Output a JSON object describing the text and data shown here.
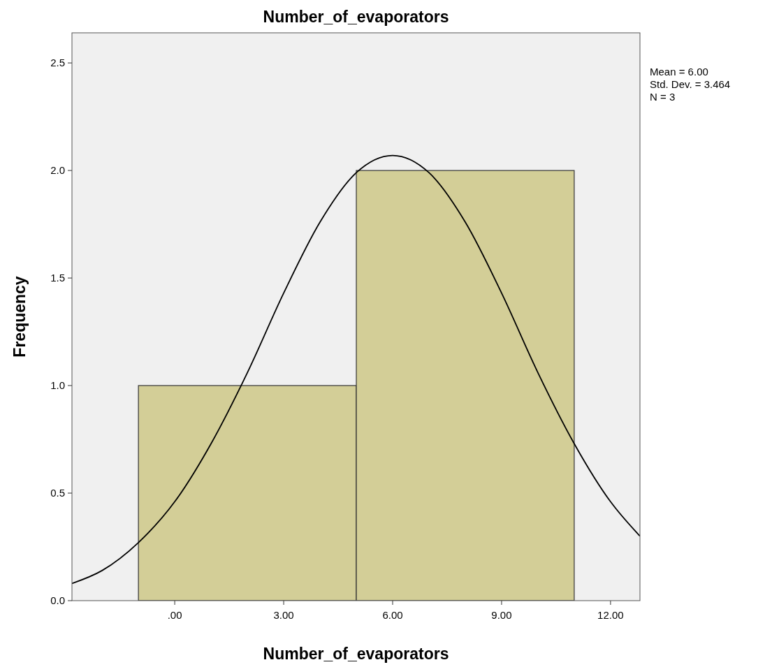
{
  "chart_data": {
    "type": "histogram",
    "title": "Number_of_evaporators",
    "xlabel": "Number_of_evaporators",
    "ylabel": "Frequency",
    "series": [
      {
        "bins": [
          -1,
          5,
          11
        ],
        "values": [
          1,
          2
        ],
        "color": "#d3ce97"
      },
      {
        "type": "line",
        "color": "#000000",
        "x": [
          -2.83,
          -2,
          -1,
          0,
          1,
          2,
          3,
          4,
          5,
          6,
          7,
          8,
          9,
          10,
          11,
          12,
          12.81
        ],
        "values": [
          0.08,
          0.14,
          0.27,
          0.46,
          0.73,
          1.06,
          1.43,
          1.76,
          1.99,
          2.07,
          1.99,
          1.76,
          1.43,
          1.06,
          0.73,
          0.46,
          0.3
        ]
      }
    ],
    "xlim": [
      -2.83,
      12.81
    ],
    "xticks": [
      {
        "value": 0,
        "label": ".00"
      },
      {
        "value": 3,
        "label": "3.00"
      },
      {
        "value": 6,
        "label": "6.00"
      },
      {
        "value": 9,
        "label": "9.00"
      },
      {
        "value": 12,
        "label": "12.00"
      }
    ],
    "ylim": [
      0,
      2.64
    ],
    "yticks": [
      {
        "value": 0,
        "label": "0.0"
      },
      0.5,
      {
        "value": 1,
        "label": "1.0"
      },
      1.5,
      {
        "value": 2,
        "label": "2.0"
      },
      2.5
    ],
    "annotations": [
      "Mean = 6.00",
      "Std. Dev. = 3.464",
      "N = 3"
    ]
  }
}
